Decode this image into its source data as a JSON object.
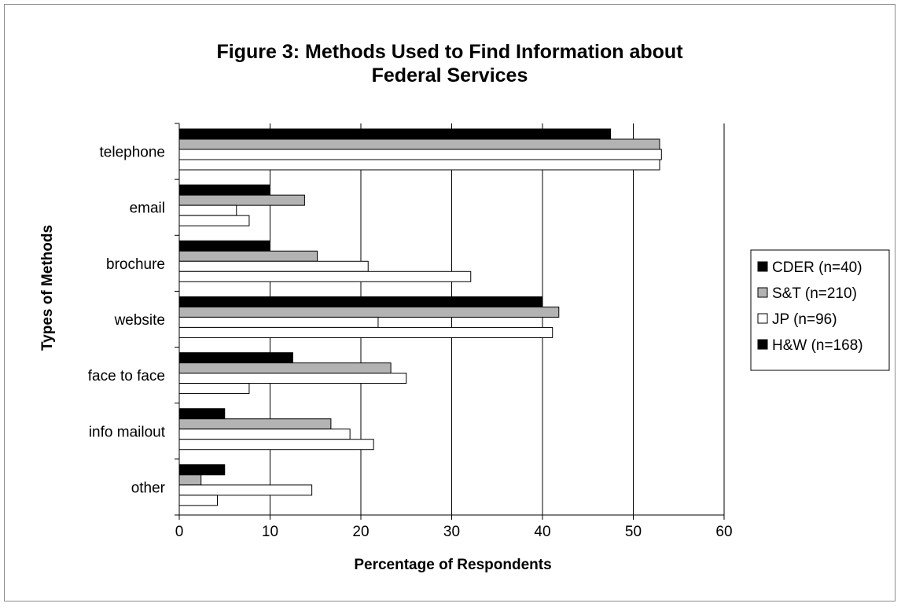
{
  "chart_data": {
    "type": "bar",
    "orientation": "horizontal",
    "title": "Figure 3: Methods Used to Find Information about Federal Services",
    "title_lines": [
      "Figure 3: Methods Used to Find Information about",
      "Federal Services"
    ],
    "xlabel": "Percentage of Respondents",
    "ylabel": "Types of Methods",
    "xlim": [
      0,
      60
    ],
    "xticks": [
      "0",
      "10",
      "20",
      "30",
      "40",
      "50",
      "60"
    ],
    "grid": "vertical",
    "legend_position": "right",
    "categories": [
      "telephone",
      "email",
      "brochure",
      "website",
      "face to face",
      "info mailout",
      "other"
    ],
    "series": [
      {
        "name": "CDER (n=40)",
        "color": "#000000",
        "values": [
          47.5,
          10,
          10,
          40,
          12.5,
          5,
          5
        ]
      },
      {
        "name": "S&T (n=210)",
        "color": "#b3b3b3",
        "values": [
          52.9,
          13.8,
          15.2,
          41.8,
          23.3,
          16.7,
          2.4
        ]
      },
      {
        "name": "JP (n=96)",
        "color": "#ffffff",
        "values": [
          53.1,
          6.3,
          20.8,
          21.9,
          25,
          18.8,
          14.6
        ]
      },
      {
        "name": "H&W (n=168)",
        "color": "#ffffff",
        "values": [
          52.9,
          7.7,
          32.1,
          41.1,
          7.7,
          21.4,
          4.2
        ]
      }
    ],
    "legend_swatch_colors": [
      "#000000",
      "#b3b3b3",
      "#ffffff",
      "#000000"
    ]
  }
}
